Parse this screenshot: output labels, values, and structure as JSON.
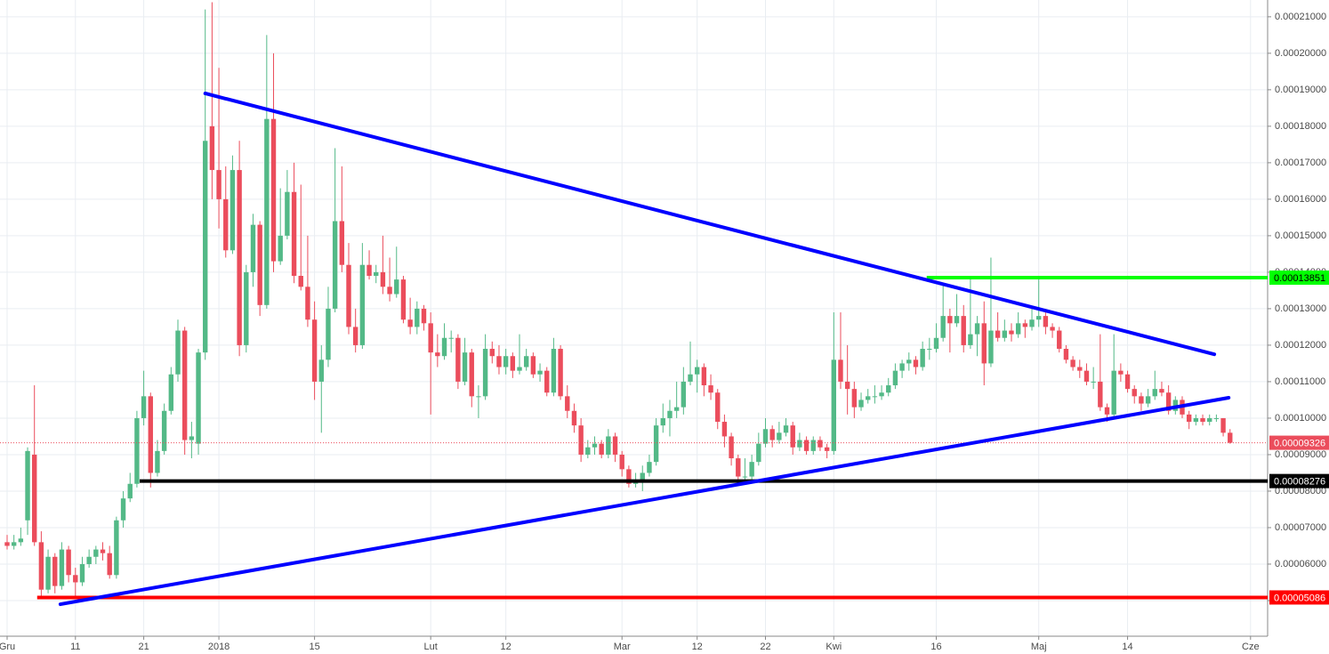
{
  "chart_data": {
    "type": "candlestick",
    "up_color": "#53b987",
    "down_color": "#eb4d5c",
    "grid": true,
    "xlim": [
      -1.04,
      184.5
    ],
    "ylim": [
      4.024e-05,
      0.0002146
    ],
    "xticks": [
      {
        "value": 0,
        "label": "Gru"
      },
      {
        "value": 10,
        "label": "11"
      },
      {
        "value": 20,
        "label": "21"
      },
      {
        "value": 31,
        "label": "2018"
      },
      {
        "value": 45,
        "label": "15"
      },
      {
        "value": 62,
        "label": "Lut"
      },
      {
        "value": 73,
        "label": "12"
      },
      {
        "value": 90,
        "label": "Mar"
      },
      {
        "value": 101,
        "label": "12"
      },
      {
        "value": 111,
        "label": "22"
      },
      {
        "value": 121,
        "label": "Kwi"
      },
      {
        "value": 136,
        "label": "16"
      },
      {
        "value": 151,
        "label": "Maj"
      },
      {
        "value": 164,
        "label": "14"
      },
      {
        "value": 182,
        "label": "Cze"
      }
    ],
    "yticks": [
      {
        "value": 5e-05,
        "label": "0.00005000"
      },
      {
        "value": 6e-05,
        "label": "0.00006000"
      },
      {
        "value": 7e-05,
        "label": "0.00007000"
      },
      {
        "value": 8e-05,
        "label": "0.00008000"
      },
      {
        "value": 9e-05,
        "label": "0.00009000"
      },
      {
        "value": 0.0001,
        "label": "0.00010000"
      },
      {
        "value": 0.00011,
        "label": "0.00011000"
      },
      {
        "value": 0.00012,
        "label": "0.00012000"
      },
      {
        "value": 0.00013,
        "label": "0.00013000"
      },
      {
        "value": 0.00014,
        "label": "0.00014000"
      },
      {
        "value": 0.00015,
        "label": "0.00015000"
      },
      {
        "value": 0.00016,
        "label": "0.00016000"
      },
      {
        "value": 0.00017,
        "label": "0.00017000"
      },
      {
        "value": 0.00018,
        "label": "0.00018000"
      },
      {
        "value": 0.00019,
        "label": "0.00019000"
      },
      {
        "value": 0.0002,
        "label": "0.00020000"
      },
      {
        "value": 0.00021,
        "label": "0.00021000"
      }
    ],
    "candles": [
      [
        6.6e-05,
        6.8e-05,
        6.4e-05,
        6.5e-05
      ],
      [
        6.5e-05,
        6.8e-05,
        6.4e-05,
        6.6e-05
      ],
      [
        6.6e-05,
        7e-05,
        6.5e-05,
        6.7e-05
      ],
      [
        7.2e-05,
        9.2e-05,
        6.8e-05,
        9.1e-05
      ],
      [
        9e-05,
        0.000109,
        6.5e-05,
        6.6e-05
      ],
      [
        6.6e-05,
        6.9e-05,
        5.1e-05,
        5.3e-05
      ],
      [
        5.3e-05,
        6.4e-05,
        5.2e-05,
        6.2e-05
      ],
      [
        6.2e-05,
        6.3e-05,
        5.2e-05,
        5.4e-05
      ],
      [
        5.4e-05,
        6.6e-05,
        5.3e-05,
        6.4e-05
      ],
      [
        6.4e-05,
        6.5e-05,
        5.5e-05,
        5.7e-05
      ],
      [
        5.7e-05,
        5.9e-05,
        5.1e-05,
        5.5e-05
      ],
      [
        5.5e-05,
        6.2e-05,
        5.4e-05,
        6e-05
      ],
      [
        6e-05,
        6.4e-05,
        5.9e-05,
        6.2e-05
      ],
      [
        6.2e-05,
        6.5e-05,
        6e-05,
        6.4e-05
      ],
      [
        6.4e-05,
        6.6e-05,
        6.1e-05,
        6.3e-05
      ],
      [
        6.3e-05,
        6.5e-05,
        5.6e-05,
        5.7e-05
      ],
      [
        5.7e-05,
        7.3e-05,
        5.6e-05,
        7.2e-05
      ],
      [
        7.2e-05,
        8e-05,
        7e-05,
        7.8e-05
      ],
      [
        7.8e-05,
        8.5e-05,
        7.7e-05,
        8.2e-05
      ],
      [
        8.2e-05,
        0.000102,
        8.1e-05,
        0.0001
      ],
      [
        0.0001,
        0.000113,
        9.8e-05,
        0.000106
      ],
      [
        0.000106,
        0.000107,
        8.1e-05,
        8.5e-05
      ],
      [
        8.5e-05,
        9.4e-05,
        8.4e-05,
        9.1e-05
      ],
      [
        9.1e-05,
        0.000104,
        9e-05,
        0.000102
      ],
      [
        0.000102,
        0.000114,
        0.000101,
        0.000112
      ],
      [
        0.000112,
        0.000127,
        0.00011,
        0.000124
      ],
      [
        0.000124,
        0.000125,
        9e-05,
        9.4e-05
      ],
      [
        9.4e-05,
        9.9e-05,
        8.9e-05,
        9.5e-05
      ],
      [
        9.3e-05,
        0.000119,
        9e-05,
        0.000118
      ],
      [
        0.000118,
        0.000212,
        0.000116,
        0.000176
      ],
      [
        0.00018,
        0.000214,
        0.00016,
        0.000168
      ],
      [
        0.000168,
        0.000196,
        0.000152,
        0.00016
      ],
      [
        0.00016,
        0.000169,
        0.000144,
        0.000146
      ],
      [
        0.000146,
        0.000172,
        0.000145,
        0.000168
      ],
      [
        0.000168,
        0.000176,
        0.000117,
        0.00012
      ],
      [
        0.00012,
        0.000142,
        0.000118,
        0.00014
      ],
      [
        0.00014,
        0.000156,
        0.000136,
        0.000153
      ],
      [
        0.000153,
        0.000154,
        0.000128,
        0.000131
      ],
      [
        0.000131,
        0.000205,
        0.00013,
        0.000182
      ],
      [
        0.000182,
        0.0002,
        0.00014,
        0.000143
      ],
      [
        0.000143,
        0.000163,
        0.000142,
        0.00015
      ],
      [
        0.00015,
        0.000168,
        0.000149,
        0.000162
      ],
      [
        0.000162,
        0.00017,
        0.000137,
        0.000139
      ],
      [
        0.000139,
        0.000164,
        0.000135,
        0.000136
      ],
      [
        0.000136,
        0.00015,
        0.000125,
        0.000127
      ],
      [
        0.000127,
        0.000132,
        0.000105,
        0.00011
      ],
      [
        0.00011,
        0.00012,
        9.6e-05,
        0.000116
      ],
      [
        0.000116,
        0.000136,
        0.000114,
        0.00013
      ],
      [
        0.00013,
        0.000174,
        0.000129,
        0.000154
      ],
      [
        0.000154,
        0.000169,
        0.00014,
        0.000142
      ],
      [
        0.000142,
        0.000148,
        0.000123,
        0.000125
      ],
      [
        0.000125,
        0.00013,
        0.000118,
        0.00012
      ],
      [
        0.00012,
        0.000148,
        0.000119,
        0.000142
      ],
      [
        0.000142,
        0.000146,
        0.000138,
        0.000139
      ],
      [
        0.000139,
        0.000142,
        0.000137,
        0.00014
      ],
      [
        0.00014,
        0.00015,
        0.000134,
        0.000136
      ],
      [
        0.000136,
        0.000144,
        0.000132,
        0.000134
      ],
      [
        0.000134,
        0.000147,
        0.000133,
        0.000138
      ],
      [
        0.000138,
        0.000139,
        0.000126,
        0.000127
      ],
      [
        0.000127,
        0.000133,
        0.000123,
        0.000125
      ],
      [
        0.000125,
        0.000132,
        0.000123,
        0.00013
      ],
      [
        0.00013,
        0.000131,
        0.000124,
        0.000126
      ],
      [
        0.000126,
        0.000129,
        0.000101,
        0.000118
      ],
      [
        0.000118,
        0.000123,
        0.000114,
        0.000117
      ],
      [
        0.000117,
        0.000126,
        0.000116,
        0.000122
      ],
      [
        0.000122,
        0.000124,
        0.000118,
        0.000122
      ],
      [
        0.000122,
        0.000123,
        0.000108,
        0.00011
      ],
      [
        0.00011,
        0.000122,
        0.000109,
        0.000118
      ],
      [
        0.000118,
        0.000119,
        0.000103,
        0.000106
      ],
      [
        0.000106,
        0.000109,
        0.0001,
        0.000106
      ],
      [
        0.000106,
        0.000123,
        0.000105,
        0.000119
      ],
      [
        0.000119,
        0.000121,
        0.000115,
        0.000117
      ],
      [
        0.000117,
        0.00012,
        0.000112,
        0.000114
      ],
      [
        0.000114,
        0.000119,
        0.000112,
        0.000117
      ],
      [
        0.000117,
        0.000118,
        0.000111,
        0.000113
      ],
      [
        0.000113,
        0.000123,
        0.000112,
        0.000114
      ],
      [
        0.000114,
        0.000119,
        0.000113,
        0.000117
      ],
      [
        0.000117,
        0.000118,
        0.000111,
        0.000112
      ],
      [
        0.000112,
        0.000115,
        0.00011,
        0.000113
      ],
      [
        0.000113,
        0.000114,
        0.000106,
        0.000107
      ],
      [
        0.000107,
        0.000122,
        0.000106,
        0.000119
      ],
      [
        0.000119,
        0.00012,
        0.000105,
        0.000106
      ],
      [
        0.000106,
        0.000109,
        0.0001,
        0.000102
      ],
      [
        0.000102,
        0.000104,
        9.6e-05,
        9.8e-05
      ],
      [
        9.8e-05,
        0.0001,
        8.8e-05,
        9e-05
      ],
      [
        9e-05,
        9.4e-05,
        8.9e-05,
        9.2e-05
      ],
      [
        9.2e-05,
        9.5e-05,
        9e-05,
        9.3e-05
      ],
      [
        9.3e-05,
        9.4e-05,
        8.9e-05,
        9e-05
      ],
      [
        9e-05,
        9.7e-05,
        8.9e-05,
        9.5e-05
      ],
      [
        9.5e-05,
        9.6e-05,
        8.8e-05,
        9e-05
      ],
      [
        9e-05,
        9.1e-05,
        8.4e-05,
        8.6e-05
      ],
      [
        8.6e-05,
        8.7e-05,
        8.1e-05,
        8.2e-05
      ],
      [
        8.2e-05,
        8.5e-05,
        8.1e-05,
        8.3e-05
      ],
      [
        8.3e-05,
        8.7e-05,
        8e-05,
        8.5e-05
      ],
      [
        8.5e-05,
        9e-05,
        8.4e-05,
        8.8e-05
      ],
      [
        8.8e-05,
        0.0001,
        8.7e-05,
        9.8e-05
      ],
      [
        9.8e-05,
        0.000104,
        9.6e-05,
        0.0001
      ],
      [
        0.0001,
        0.000105,
        9.5e-05,
        0.000102
      ],
      [
        0.000102,
        0.00011,
        0.0001,
        0.000103
      ],
      [
        0.000103,
        0.000114,
        0.000101,
        0.00011
      ],
      [
        0.00011,
        0.000121,
        0.000109,
        0.000112
      ],
      [
        0.000112,
        0.000116,
        0.000107,
        0.000114
      ],
      [
        0.000114,
        0.000115,
        0.000106,
        0.000109
      ],
      [
        0.000109,
        0.000112,
        0.000105,
        0.000107
      ],
      [
        0.000107,
        0.000108,
        9.7e-05,
        9.9e-05
      ],
      [
        9.9e-05,
        0.000101,
        9.2e-05,
        9.5e-05
      ],
      [
        9.5e-05,
        9.6e-05,
        8.7e-05,
        8.9e-05
      ],
      [
        8.9e-05,
        9e-05,
        8.2e-05,
        8.4e-05
      ],
      [
        8.4e-05,
        8.9e-05,
        8.3e-05,
        8.4e-05
      ],
      [
        8.4e-05,
        9e-05,
        8.3e-05,
        8.8e-05
      ],
      [
        8.8e-05,
        9.6e-05,
        8.7e-05,
        9.3e-05
      ],
      [
        9.3e-05,
        0.0001,
        9.2e-05,
        9.7e-05
      ],
      [
        9.7e-05,
        9.8e-05,
        9.2e-05,
        9.4e-05
      ],
      [
        9.4e-05,
        9.9e-05,
        9.3e-05,
        9.6e-05
      ],
      [
        9.6e-05,
        0.0001,
        9.5e-05,
        9.8e-05
      ],
      [
        9.8e-05,
        9.9e-05,
        9e-05,
        9.2e-05
      ],
      [
        9.2e-05,
        9.6e-05,
        9.1e-05,
        9.4e-05
      ],
      [
        9.4e-05,
        9.5e-05,
        9e-05,
        9.1e-05
      ],
      [
        9.1e-05,
        9.5e-05,
        9e-05,
        9.4e-05
      ],
      [
        9.4e-05,
        9.5e-05,
        9.1e-05,
        9.2e-05
      ],
      [
        9.2e-05,
        9.3e-05,
        8.9e-05,
        9.1e-05
      ],
      [
        9.1e-05,
        0.000129,
        9e-05,
        0.000116
      ],
      [
        0.000116,
        0.000129,
        0.000108,
        0.00011
      ],
      [
        0.00011,
        0.00012,
        0.000101,
        0.000108
      ],
      [
        0.000108,
        0.00011,
        0.0001,
        0.000103
      ],
      [
        0.000103,
        0.000107,
        0.000102,
        0.000105
      ],
      [
        0.000105,
        0.000108,
        0.000104,
        0.000106
      ],
      [
        0.000106,
        0.000109,
        0.000104,
        0.000106
      ],
      [
        0.000106,
        0.000109,
        0.000105,
        0.000107
      ],
      [
        0.000107,
        0.000111,
        0.000106,
        0.000109
      ],
      [
        0.000109,
        0.000115,
        0.000108,
        0.000113
      ],
      [
        0.000113,
        0.000116,
        0.000111,
        0.000115
      ],
      [
        0.000115,
        0.000118,
        0.000113,
        0.000116
      ],
      [
        0.000116,
        0.000117,
        0.000112,
        0.000114
      ],
      [
        0.000114,
        0.000121,
        0.000113,
        0.000119
      ],
      [
        0.000119,
        0.000122,
        0.000116,
        0.000119
      ],
      [
        0.000119,
        0.000126,
        0.000118,
        0.000122
      ],
      [
        0.000122,
        0.000137,
        0.000121,
        0.000128
      ],
      [
        0.000128,
        0.00013,
        0.000118,
        0.000126
      ],
      [
        0.000126,
        0.000134,
        0.000125,
        0.000128
      ],
      [
        0.000128,
        0.000131,
        0.000118,
        0.00012
      ],
      [
        0.00012,
        0.000139,
        0.000119,
        0.000123
      ],
      [
        0.000123,
        0.000128,
        0.000117,
        0.000126
      ],
      [
        0.000126,
        0.000132,
        0.000109,
        0.000115
      ],
      [
        0.000115,
        0.000144,
        0.000114,
        0.000124
      ],
      [
        0.000124,
        0.000129,
        0.000121,
        0.000122
      ],
      [
        0.000122,
        0.000127,
        0.000121,
        0.000124
      ],
      [
        0.000124,
        0.000126,
        0.000121,
        0.000123
      ],
      [
        0.000123,
        0.000129,
        0.000122,
        0.000126
      ],
      [
        0.000126,
        0.000127,
        0.000122,
        0.000125
      ],
      [
        0.000125,
        0.00013,
        0.000124,
        0.000127
      ],
      [
        0.000127,
        0.000139,
        0.000125,
        0.000128
      ],
      [
        0.000128,
        0.000129,
        0.000123,
        0.000125
      ],
      [
        0.000125,
        0.000126,
        0.000122,
        0.000124
      ],
      [
        0.000124,
        0.000125,
        0.000118,
        0.000119
      ],
      [
        0.000119,
        0.00012,
        0.000115,
        0.000116
      ],
      [
        0.000116,
        0.000117,
        0.000113,
        0.000114
      ],
      [
        0.000114,
        0.000116,
        0.000111,
        0.000113
      ],
      [
        0.000113,
        0.000115,
        0.000109,
        0.00011
      ],
      [
        0.00011,
        0.000114,
        0.000108,
        0.00011
      ],
      [
        0.00011,
        0.000123,
        0.000102,
        0.000103
      ],
      [
        0.000103,
        0.000104,
        9.9e-05,
        0.000101
      ],
      [
        0.000101,
        0.000123,
        0.0001,
        0.000113
      ],
      [
        0.000113,
        0.000115,
        0.00011,
        0.000112
      ],
      [
        0.000112,
        0.000113,
        0.000107,
        0.000108
      ],
      [
        0.000108,
        0.000109,
        0.000104,
        0.000106
      ],
      [
        0.000106,
        0.000107,
        0.000102,
        0.000104
      ],
      [
        0.000104,
        0.000108,
        0.000103,
        0.000106
      ],
      [
        0.000106,
        0.000113,
        0.000105,
        0.000108
      ],
      [
        0.000108,
        0.00011,
        0.000106,
        0.000107
      ],
      [
        0.000107,
        0.000109,
        0.000101,
        0.000102
      ],
      [
        0.000102,
        0.000106,
        0.000101,
        0.000105
      ],
      [
        0.000105,
        0.000106,
        0.0001,
        0.000101
      ],
      [
        0.000101,
        0.000102,
        9.7e-05,
        9.9e-05
      ],
      [
        9.9e-05,
        0.000101,
        9.8e-05,
        0.0001
      ],
      [
        0.0001,
        0.000101,
        9.8e-05,
        9.9e-05
      ],
      [
        9.9e-05,
        0.000101,
        9.8e-05,
        0.0001
      ],
      [
        0.0001,
        0.000101,
        9.9e-05,
        0.0001
      ],
      [
        0.0001,
        0.0001,
        9.5e-05,
        9.6e-05
      ],
      [
        9.6e-05,
        9.7e-05,
        9.3e-05,
        9.326e-05
      ]
    ],
    "trendlines": [
      {
        "color": "#0000ff",
        "x": [
          29,
          176.7
        ],
        "y": [
          0.000189,
          0.0001175
        ]
      },
      {
        "color": "#0000ff",
        "x": [
          7.8,
          178.8
        ],
        "y": [
          4.9e-05,
          0.0001056
        ]
      }
    ],
    "levels": [
      {
        "value": 0.00013851,
        "label": "0.00013851",
        "color": "#00ff00",
        "text_color": "#000000",
        "from": 134.6
      },
      {
        "value": 8.276e-05,
        "label": "0.00008276",
        "color": "#000000",
        "text_color": "#ffffff",
        "from": 19.4
      },
      {
        "value": 5.086e-05,
        "label": "0.00005086",
        "color": "#ff0000",
        "text_color": "#ffffff",
        "from": 4.4
      },
      {
        "value": 9.326e-05,
        "label": "0.00009326",
        "color": "#eb4d5c",
        "text_color": "#ffffff",
        "style": "dotted"
      }
    ]
  }
}
